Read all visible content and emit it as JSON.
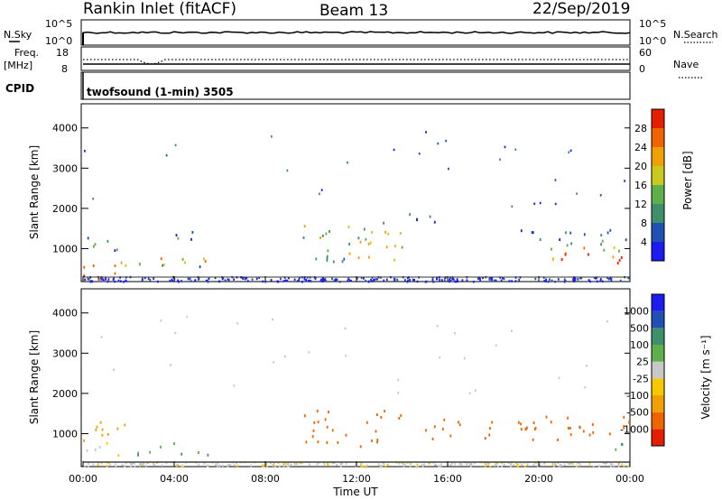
{
  "header": {
    "station": "Rankin Inlet (fitACF)",
    "beam": "Beam 13",
    "date": "22/Sep/2019"
  },
  "noise_panel": {
    "left_label": "N.Sky",
    "right_label": "N.Search",
    "left_ticks": [
      "10^5",
      "10^0"
    ],
    "right_ticks": [
      "10^5",
      "10^0"
    ]
  },
  "freq_panel": {
    "left_label": "Freq.",
    "left_unit": "[MHz]",
    "right_label": "Nave",
    "left_ticks": [
      "18",
      "8"
    ],
    "right_ticks": [
      "60",
      "0"
    ]
  },
  "cpid_panel": {
    "label": "CPID",
    "program": "twofsound (1-min) 3505"
  },
  "colors": {
    "power": [
      "#1c1cf0",
      "#2050b4",
      "#3f8f6b",
      "#5fb04a",
      "#c8c81e",
      "#f0a000",
      "#f06400",
      "#e61e00"
    ],
    "velocity": [
      "#e61e00",
      "#f06400",
      "#f0a000",
      "#f5c800",
      "#c8c8c8",
      "#5fb04a",
      "#3f8f6b",
      "#2050b4",
      "#1c1cf0"
    ]
  },
  "chart_data": [
    {
      "type": "heatmap",
      "name": "power",
      "ylabel": "Slant Range [km]",
      "y_ticks": [
        "1000",
        "2000",
        "3000",
        "4000"
      ],
      "ylim": [
        180,
        4600
      ],
      "xlim": [
        0,
        24
      ],
      "colorbar": {
        "label": "Power [dB]",
        "ticks": [
          "4",
          "8",
          "12",
          "16",
          "20",
          "24",
          "28"
        ],
        "range": [
          0,
          32
        ]
      },
      "echo_bands": [
        {
          "t0": 0.0,
          "t1": 2.0,
          "r0": 200,
          "r1": 800,
          "level": 28
        },
        {
          "t0": 0.0,
          "t1": 2.0,
          "r0": 850,
          "r1": 1350,
          "level": 8
        },
        {
          "t0": 2.0,
          "t1": 5.5,
          "r0": 500,
          "r1": 800,
          "level": 16
        },
        {
          "t0": 2.5,
          "t1": 5.0,
          "r0": 1200,
          "r1": 1500,
          "level": 8
        },
        {
          "t0": 9.5,
          "t1": 14.0,
          "r0": 700,
          "r1": 1600,
          "level": 16
        },
        {
          "t0": 13.0,
          "t1": 15.5,
          "r0": 1600,
          "r1": 1900,
          "level": 6
        },
        {
          "t0": 19.0,
          "t1": 24.0,
          "r0": 1100,
          "r1": 1500,
          "level": 8
        },
        {
          "t0": 20.5,
          "t1": 24.0,
          "r0": 600,
          "r1": 1100,
          "level": 24
        }
      ]
    },
    {
      "type": "heatmap",
      "name": "velocity",
      "ylabel": "Slant Range [km]",
      "y_ticks": [
        "1000",
        "2000",
        "3000",
        "4000"
      ],
      "ylim": [
        180,
        4600
      ],
      "xlim": [
        0,
        24
      ],
      "colorbar": {
        "label": "Velocity [m s⁻¹]",
        "ticks": [
          "1000",
          "500",
          "100",
          "25",
          "-25",
          "-100",
          "-500",
          "-1000"
        ]
      },
      "echo_bands": [
        {
          "t0": 0.0,
          "t1": 2.0,
          "r0": 200,
          "r1": 800,
          "level": 0
        },
        {
          "t0": 0.0,
          "t1": 2.0,
          "r0": 850,
          "r1": 1350,
          "level": -80
        },
        {
          "t0": 2.0,
          "t1": 5.5,
          "r0": 500,
          "r1": 800,
          "level": 100
        },
        {
          "t0": 9.5,
          "t1": 14.0,
          "r0": 700,
          "r1": 1600,
          "level": -200
        },
        {
          "t0": 15.0,
          "t1": 18.0,
          "r0": 900,
          "r1": 1400,
          "level": -150
        },
        {
          "t0": 19.0,
          "t1": 24.0,
          "r0": 800,
          "r1": 1500,
          "level": -300
        },
        {
          "t0": 22.5,
          "t1": 24.0,
          "r0": 600,
          "r1": 800,
          "level": 100
        }
      ]
    }
  ],
  "x_axis": {
    "ticks": [
      "00:00",
      "04:00",
      "08:00",
      "12:00",
      "16:00",
      "20:00",
      "00:00"
    ],
    "label": "Time UT"
  }
}
